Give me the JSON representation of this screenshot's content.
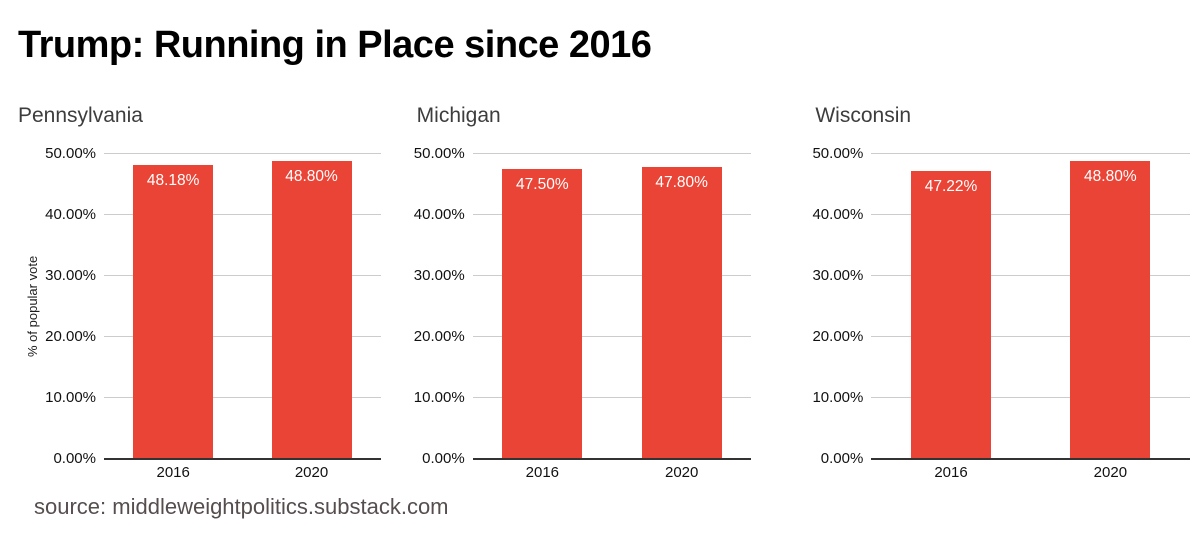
{
  "page": {
    "title": "Trump: Running in Place since 2016",
    "source": "source: middleweightpolitics.substack.com"
  },
  "colors": {
    "bar": "#e94435",
    "grid": "#cccccc",
    "axis": "#333333",
    "chart_title": "#3d3d3d",
    "tick": "#111111",
    "bar_label": "#ffffff",
    "source_text": "#564e4e",
    "main_title": "#000000"
  },
  "chart_data": [
    {
      "type": "bar",
      "title": "Pennsylvania",
      "ylabel": "% of popular vote",
      "categories": [
        "2016",
        "2020"
      ],
      "values": [
        48.18,
        48.8
      ],
      "value_labels": [
        "48.18%",
        "48.80%"
      ],
      "ylim": [
        0,
        50
      ],
      "yticks": [
        "0.00%",
        "10.00%",
        "20.00%",
        "30.00%",
        "40.00%",
        "50.00%"
      ],
      "grid": true,
      "legend": "none"
    },
    {
      "type": "bar",
      "title": "Michigan",
      "ylabel": "",
      "categories": [
        "2016",
        "2020"
      ],
      "values": [
        47.5,
        47.8
      ],
      "value_labels": [
        "47.50%",
        "47.80%"
      ],
      "ylim": [
        0,
        50
      ],
      "yticks": [
        "0.00%",
        "10.00%",
        "20.00%",
        "30.00%",
        "40.00%",
        "50.00%"
      ],
      "grid": true,
      "legend": "none"
    },
    {
      "type": "bar",
      "title": "Wisconsin",
      "ylabel": "",
      "categories": [
        "2016",
        "2020"
      ],
      "values": [
        47.22,
        48.8
      ],
      "value_labels": [
        "47.22%",
        "48.80%"
      ],
      "ylim": [
        0,
        50
      ],
      "yticks": [
        "0.00%",
        "10.00%",
        "20.00%",
        "30.00%",
        "40.00%",
        "50.00%"
      ],
      "grid": true,
      "legend": "none"
    }
  ]
}
